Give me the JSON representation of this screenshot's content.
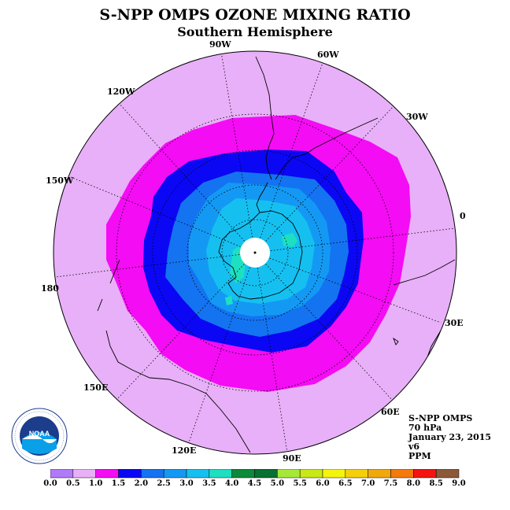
{
  "header": {
    "title": "S-NPP OMPS OZONE MIXING RATIO",
    "subtitle": "Southern Hemisphere"
  },
  "map": {
    "projection": "south polar stereographic",
    "longitude_labels": {
      "w90": "90W",
      "w60": "60W",
      "w30": "30W",
      "lon0": "0",
      "e30": "30E",
      "e60": "60E",
      "e90": "90E",
      "e120": "120E",
      "e150": "150E",
      "lon180": "180",
      "w150": "150W",
      "w120": "120W"
    },
    "field": "ozone mixing ratio",
    "level_shading_ppm": [
      {
        "region": "outer",
        "range": "0.5-1.0",
        "color": "#e8b0f8"
      },
      {
        "region": "ring",
        "range": "1.0-1.5",
        "color": "#f40cf4"
      },
      {
        "region": "vortex edge",
        "range": "1.5-2.0",
        "color": "#0b07f4"
      },
      {
        "region": "vortex",
        "range": "2.0-2.5",
        "color": "#1473f0"
      },
      {
        "region": "inner vortex",
        "range": "2.5-3.0",
        "color": "#1399f4"
      },
      {
        "region": "core",
        "range": "3.0-3.5",
        "color": "#15c0f0"
      },
      {
        "region": "peak",
        "range": "3.5-4.0",
        "color": "#1de0c0"
      }
    ]
  },
  "info": {
    "instrument": "S-NPP OMPS",
    "level": "70 hPa",
    "date": "January 23, 2015",
    "version": "v6",
    "units": "PPM"
  },
  "logo": {
    "name": "noaa-logo",
    "text": "NOAA",
    "ring_text": "NATIONAL OCEANIC AND ATMOSPHERIC ADMINISTRATION · U.S. DEPARTMENT OF COMMERCE"
  },
  "colorbar": {
    "ticks": [
      "0.0",
      "0.5",
      "1.0",
      "1.5",
      "2.0",
      "2.5",
      "3.0",
      "3.5",
      "4.0",
      "4.5",
      "5.0",
      "5.5",
      "6.0",
      "6.5",
      "7.0",
      "7.5",
      "8.0",
      "8.5",
      "9.0"
    ],
    "colors": [
      "#b07af8",
      "#e8b0f8",
      "#f40cf4",
      "#0b07f4",
      "#1473f0",
      "#1399f4",
      "#15c0f0",
      "#1de0c0",
      "#0b8a3a",
      "#087030",
      "#a6e838",
      "#c8e818",
      "#f4f40c",
      "#f4d00c",
      "#f0a80c",
      "#f47a0c",
      "#f41410",
      "#8c5a38"
    ]
  }
}
